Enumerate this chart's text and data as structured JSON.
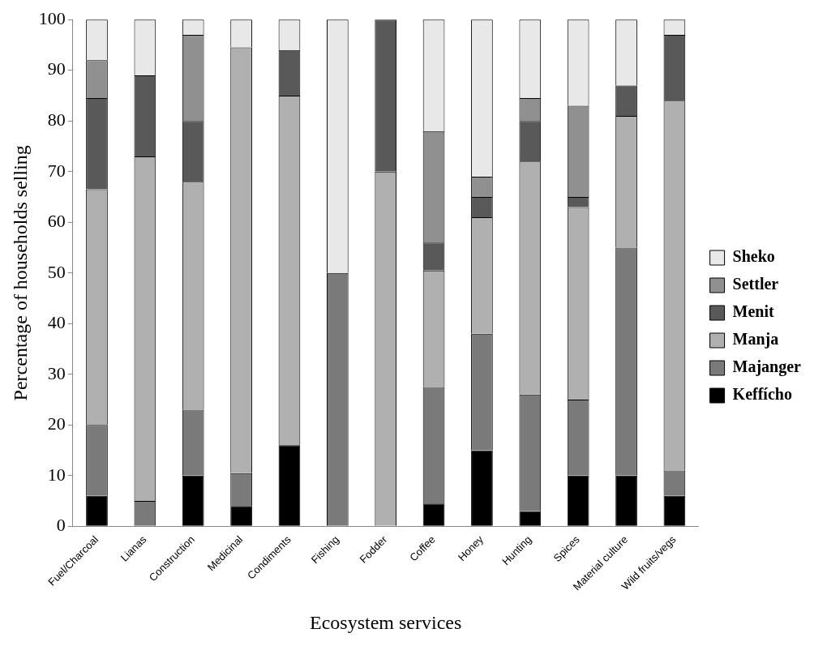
{
  "chart_data": {
    "type": "bar",
    "stacked": true,
    "xlabel": "Ecosystem services",
    "ylabel": "Percentage of households selling",
    "categories": [
      "Fuel/Charcoal",
      "Lianas",
      "Construction",
      "Medicinal",
      "Condiments",
      "Fishing",
      "Fodder",
      "Coffee",
      "Honey",
      "Hunting",
      "Spices",
      "Material culture",
      "Wild fruits/vegs"
    ],
    "series": [
      {
        "name": "Keffícho",
        "color": "#000000",
        "values": [
          6,
          0,
          10,
          4,
          16,
          0,
          0,
          4.5,
          15,
          3,
          10,
          10,
          6
        ]
      },
      {
        "name": "Majanger",
        "color": "#7a7a7a",
        "values": [
          14,
          5,
          13,
          6.5,
          0,
          50,
          0,
          23,
          23,
          23,
          15,
          45,
          5
        ]
      },
      {
        "name": "Manja",
        "color": "#b0b0b0",
        "values": [
          46.5,
          68,
          45,
          84,
          69,
          0,
          70,
          23,
          23,
          46,
          38,
          26,
          73
        ]
      },
      {
        "name": "Menit",
        "color": "#595959",
        "values": [
          18,
          16,
          12,
          0,
          9,
          0,
          30,
          5.5,
          4,
          8,
          2,
          6,
          13
        ]
      },
      {
        "name": "Settler",
        "color": "#909090",
        "values": [
          7.5,
          0,
          17,
          0,
          0,
          0,
          0,
          22,
          4,
          4.5,
          18,
          0,
          0
        ]
      },
      {
        "name": "Sheko",
        "color": "#e8e8e8",
        "values": [
          8,
          11,
          3,
          5.5,
          6,
          50,
          0,
          22,
          31,
          15.5,
          17,
          13,
          3
        ]
      }
    ],
    "ylim": [
      0,
      100
    ],
    "yticks": [
      0,
      10,
      20,
      30,
      40,
      50,
      60,
      70,
      80,
      90,
      100
    ],
    "grid": false,
    "legend": "right"
  }
}
